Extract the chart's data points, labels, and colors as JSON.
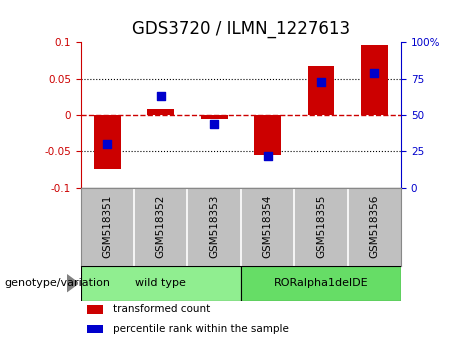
{
  "title": "GDS3720 / ILMN_1227613",
  "samples": [
    "GSM518351",
    "GSM518352",
    "GSM518353",
    "GSM518354",
    "GSM518355",
    "GSM518356"
  ],
  "transformed_count": [
    -0.075,
    0.008,
    -0.005,
    -0.055,
    0.068,
    0.097
  ],
  "percentile_rank": [
    30,
    63,
    44,
    22,
    73,
    79
  ],
  "ylim_left": [
    -0.1,
    0.1
  ],
  "ylim_right": [
    0,
    100
  ],
  "yticks_left": [
    -0.1,
    -0.05,
    0,
    0.05,
    0.1
  ],
  "yticks_right": [
    0,
    25,
    50,
    75,
    100
  ],
  "hlines": [
    -0.05,
    0.0,
    0.05
  ],
  "bar_color": "#cc0000",
  "dot_color": "#0000cc",
  "bar_width": 0.5,
  "dot_size": 40,
  "genotype_groups": [
    {
      "label": "wild type",
      "start": 0,
      "end": 2,
      "color": "#90ee90"
    },
    {
      "label": "RORalpha1delDE",
      "start": 3,
      "end": 5,
      "color": "#66dd66"
    }
  ],
  "group_row_label": "genotype/variation",
  "legend_items": [
    {
      "label": "transformed count",
      "color": "#cc0000"
    },
    {
      "label": "percentile rank within the sample",
      "color": "#0000cc"
    }
  ],
  "sample_bg": "#c0c0c0",
  "zero_line_color": "#cc0000",
  "hline_color": "#000000",
  "axis_bg": "#ffffff",
  "title_fontsize": 12,
  "tick_fontsize": 7.5,
  "legend_fontsize": 7.5,
  "geno_label_fontsize": 8
}
